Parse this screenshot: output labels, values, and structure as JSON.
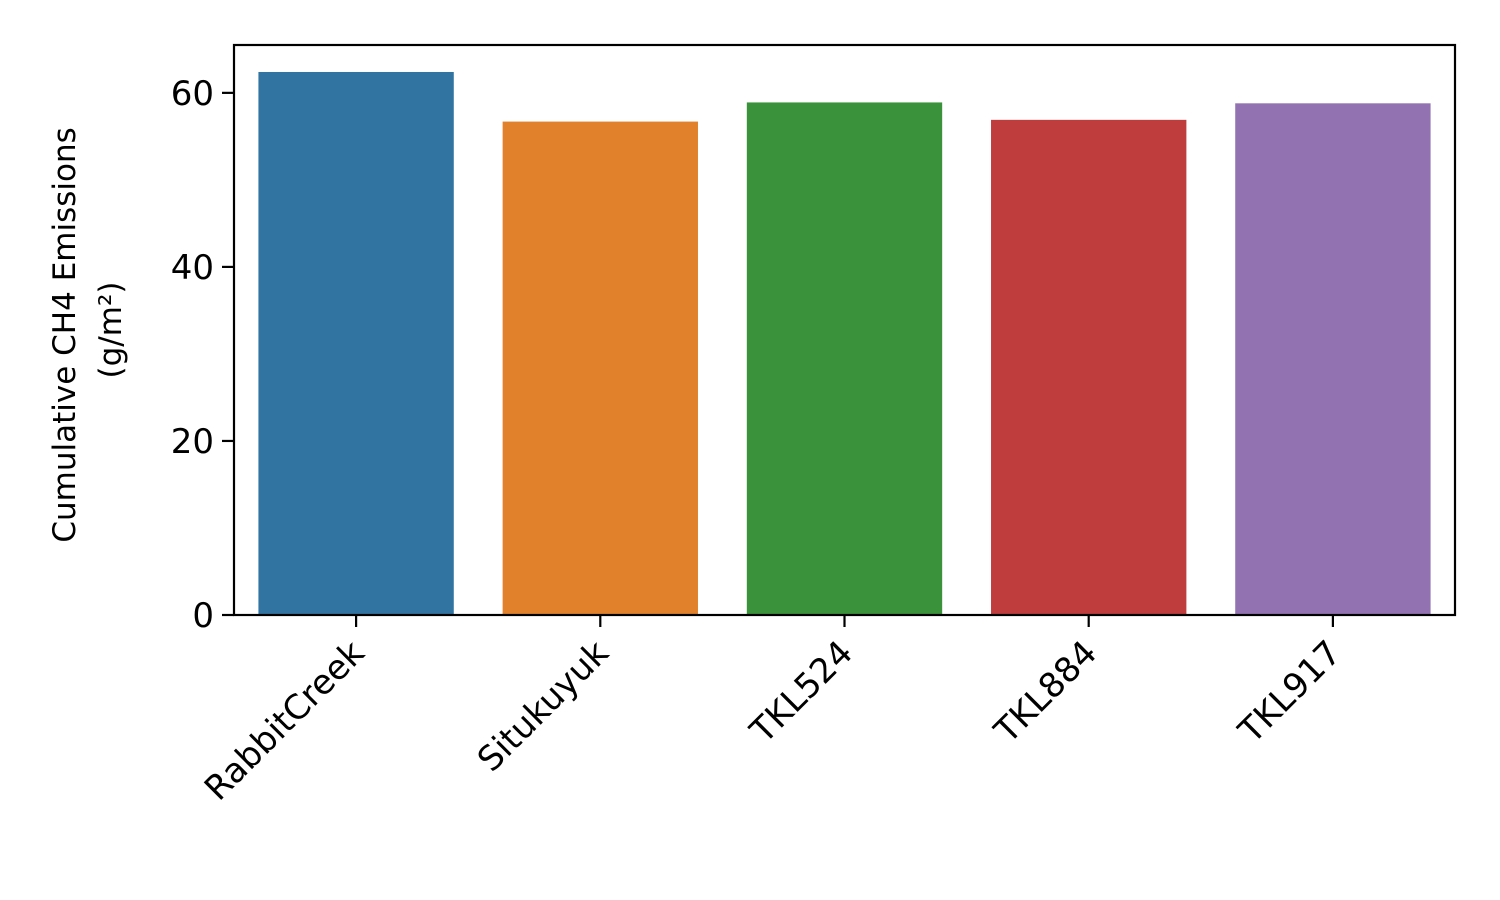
{
  "chart_data": {
    "type": "bar",
    "title": "",
    "xlabel": "",
    "ylabel_lines": [
      "Cumulative CH4 Emissions",
      "(g/m²)"
    ],
    "categories": [
      "RabbitCreek",
      "Situkuyuk",
      "TKL524",
      "TKL884",
      "TKL917"
    ],
    "values": [
      62.4,
      56.7,
      58.9,
      56.9,
      58.8
    ],
    "colors": [
      "#3274a1",
      "#e1812c",
      "#3a923a",
      "#c03d3e",
      "#9372b2"
    ],
    "ylim": [
      0,
      65.5
    ],
    "yticks": [
      0,
      20,
      40,
      60
    ],
    "grid": false,
    "legend": "none"
  }
}
